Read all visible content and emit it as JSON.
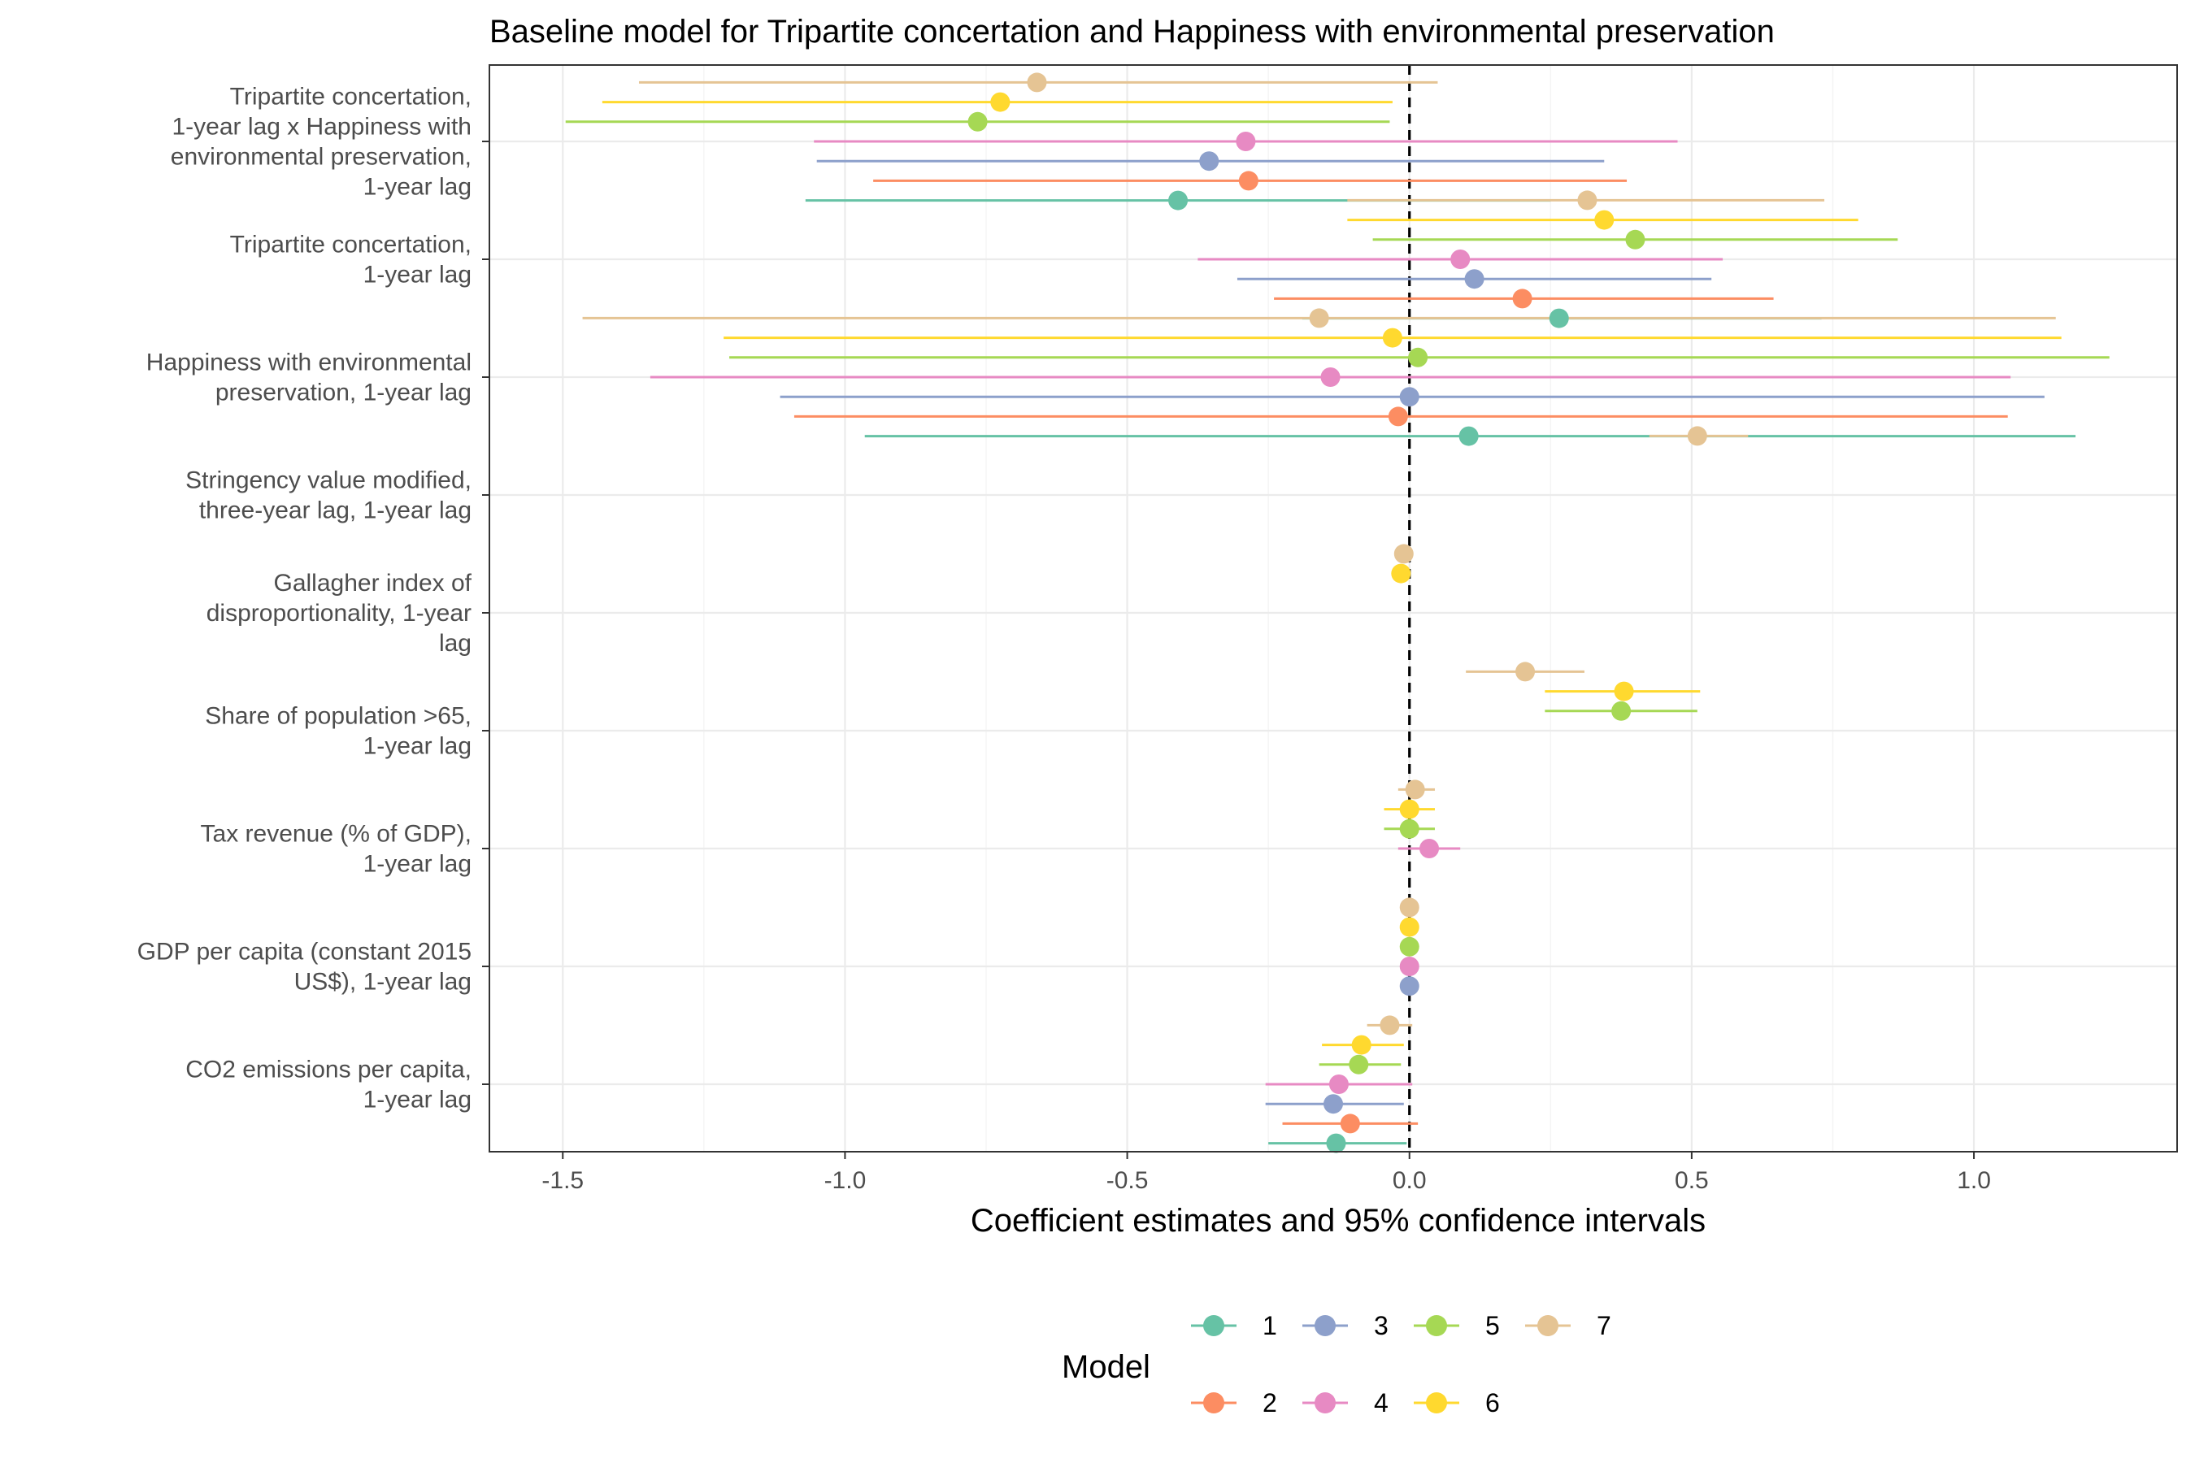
{
  "chart_data": {
    "type": "scatter",
    "title": "Baseline model for Tripartite concertation and Happiness with environmental preservation",
    "xlabel": "Coefficient estimates and 95% confidence intervals",
    "ylabel": "",
    "xlim": [
      -1.63,
      1.36
    ],
    "xticks": [
      -1.5,
      -1.0,
      -0.5,
      0.0,
      0.5,
      1.0
    ],
    "xtick_labels": [
      "-1.5",
      "-1.0",
      "-0.5",
      "0.0",
      "0.5",
      "1.0"
    ],
    "reference_line": 0,
    "grid": true,
    "legend": {
      "title": "Model",
      "placement": "bottom"
    },
    "terms": [
      {
        "key": "t1",
        "lines": [
          "Tripartite concertation,",
          "1-year lag x Happiness with",
          "environmental preservation,",
          "1-year lag"
        ]
      },
      {
        "key": "t2",
        "lines": [
          "Tripartite concertation,",
          "1-year lag"
        ]
      },
      {
        "key": "t3",
        "lines": [
          "Happiness with environmental",
          "preservation, 1-year lag"
        ]
      },
      {
        "key": "t4",
        "lines": [
          "Stringency value modified,",
          "three-year lag, 1-year lag"
        ]
      },
      {
        "key": "t5",
        "lines": [
          "Gallagher index of",
          "disproportionality, 1-year",
          "lag"
        ]
      },
      {
        "key": "t6",
        "lines": [
          "Share of population >65,",
          "1-year lag"
        ]
      },
      {
        "key": "t7",
        "lines": [
          "Tax revenue (% of GDP),",
          "1-year lag"
        ]
      },
      {
        "key": "t8",
        "lines": [
          "GDP per capita (constant 2015",
          "US$), 1-year lag"
        ]
      },
      {
        "key": "t9",
        "lines": [
          "CO2 emissions per capita,",
          "1-year lag"
        ]
      }
    ],
    "series": [
      {
        "name": "1",
        "color": "#66C2A5",
        "points": [
          {
            "term": "t1",
            "est": -0.41,
            "lo": -1.07,
            "hi": 0.25
          },
          {
            "term": "t2",
            "est": 0.265,
            "lo": -0.19,
            "hi": 0.73
          },
          {
            "term": "t3",
            "est": 0.105,
            "lo": -0.965,
            "hi": 1.18
          },
          {
            "term": "t9",
            "est": -0.13,
            "lo": -0.25,
            "hi": -0.005
          }
        ]
      },
      {
        "name": "2",
        "color": "#FC8D62",
        "points": [
          {
            "term": "t1",
            "est": -0.285,
            "lo": -0.95,
            "hi": 0.385
          },
          {
            "term": "t2",
            "est": 0.2,
            "lo": -0.24,
            "hi": 0.645
          },
          {
            "term": "t3",
            "est": -0.02,
            "lo": -1.09,
            "hi": 1.06
          },
          {
            "term": "t9",
            "est": -0.105,
            "lo": -0.225,
            "hi": 0.015
          }
        ]
      },
      {
        "name": "3",
        "color": "#8DA0CB",
        "points": [
          {
            "term": "t1",
            "est": -0.355,
            "lo": -1.05,
            "hi": 0.345
          },
          {
            "term": "t2",
            "est": 0.115,
            "lo": -0.305,
            "hi": 0.535
          },
          {
            "term": "t3",
            "est": 0.0,
            "lo": -1.115,
            "hi": 1.125
          },
          {
            "term": "t8",
            "est": 0.0,
            "lo": 0.0,
            "hi": 0.0
          },
          {
            "term": "t9",
            "est": -0.135,
            "lo": -0.255,
            "hi": -0.01
          }
        ]
      },
      {
        "name": "4",
        "color": "#E78AC3",
        "points": [
          {
            "term": "t1",
            "est": -0.29,
            "lo": -1.055,
            "hi": 0.475
          },
          {
            "term": "t2",
            "est": 0.09,
            "lo": -0.375,
            "hi": 0.555
          },
          {
            "term": "t3",
            "est": -0.14,
            "lo": -1.345,
            "hi": 1.065
          },
          {
            "term": "t7",
            "est": 0.035,
            "lo": -0.02,
            "hi": 0.09
          },
          {
            "term": "t8",
            "est": 0.0,
            "lo": 0.0,
            "hi": 0.0
          },
          {
            "term": "t9",
            "est": -0.125,
            "lo": -0.255,
            "hi": 0.005
          }
        ]
      },
      {
        "name": "5",
        "color": "#A6D854",
        "points": [
          {
            "term": "t1",
            "est": -0.765,
            "lo": -1.495,
            "hi": -0.035
          },
          {
            "term": "t2",
            "est": 0.4,
            "lo": -0.065,
            "hi": 0.865
          },
          {
            "term": "t3",
            "est": 0.015,
            "lo": -1.205,
            "hi": 1.24
          },
          {
            "term": "t6",
            "est": 0.375,
            "lo": 0.24,
            "hi": 0.51
          },
          {
            "term": "t7",
            "est": 0.0,
            "lo": -0.045,
            "hi": 0.045
          },
          {
            "term": "t8",
            "est": 0.0,
            "lo": 0.0,
            "hi": 0.0
          },
          {
            "term": "t9",
            "est": -0.09,
            "lo": -0.16,
            "hi": -0.015
          }
        ]
      },
      {
        "name": "6",
        "color": "#FFD92F",
        "points": [
          {
            "term": "t1",
            "est": -0.725,
            "lo": -1.43,
            "hi": -0.03
          },
          {
            "term": "t2",
            "est": 0.345,
            "lo": -0.11,
            "hi": 0.795
          },
          {
            "term": "t3",
            "est": -0.03,
            "lo": -1.215,
            "hi": 1.155
          },
          {
            "term": "t5",
            "est": -0.015,
            "lo": -0.03,
            "hi": 0.0
          },
          {
            "term": "t6",
            "est": 0.38,
            "lo": 0.24,
            "hi": 0.515
          },
          {
            "term": "t7",
            "est": 0.0,
            "lo": -0.045,
            "hi": 0.045
          },
          {
            "term": "t8",
            "est": 0.0,
            "lo": 0.0,
            "hi": 0.0
          },
          {
            "term": "t9",
            "est": -0.085,
            "lo": -0.155,
            "hi": -0.01
          }
        ]
      },
      {
        "name": "7",
        "color": "#E5C494",
        "points": [
          {
            "term": "t1",
            "est": -0.66,
            "lo": -1.365,
            "hi": 0.05
          },
          {
            "term": "t2",
            "est": 0.315,
            "lo": -0.11,
            "hi": 0.735
          },
          {
            "term": "t3",
            "est": -0.16,
            "lo": -1.465,
            "hi": 1.145
          },
          {
            "term": "t4",
            "est": 0.51,
            "lo": 0.425,
            "hi": 0.6
          },
          {
            "term": "t5",
            "est": -0.01,
            "lo": -0.025,
            "hi": 0.005
          },
          {
            "term": "t6",
            "est": 0.205,
            "lo": 0.1,
            "hi": 0.31
          },
          {
            "term": "t7",
            "est": 0.01,
            "lo": -0.02,
            "hi": 0.045
          },
          {
            "term": "t8",
            "est": 0.0,
            "lo": 0.0,
            "hi": 0.0
          },
          {
            "term": "t9",
            "est": -0.035,
            "lo": -0.075,
            "hi": 0.005
          }
        ]
      }
    ]
  }
}
